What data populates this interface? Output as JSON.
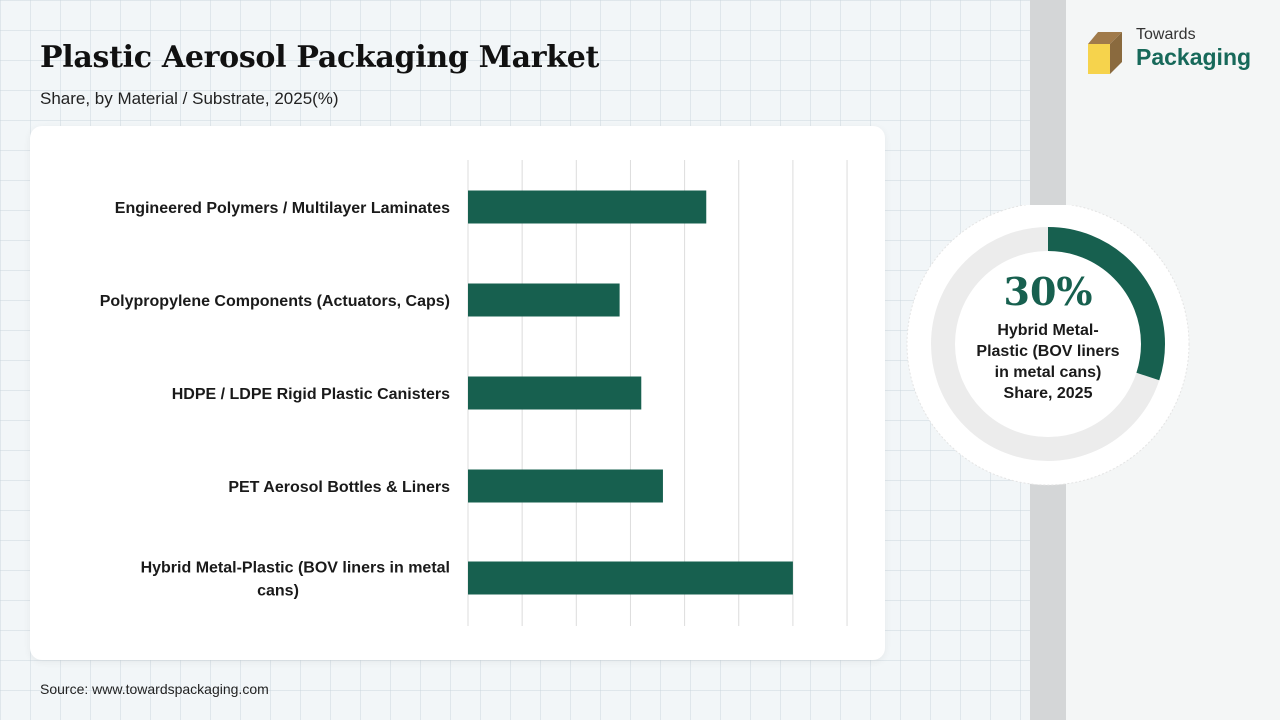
{
  "header": {
    "title": "Plastic Aerosol Packaging Market",
    "subtitle": "Share, by Material / Substrate, 2025(%)"
  },
  "brand": {
    "line1": "Towards",
    "line2": "Packaging"
  },
  "source": "Source: www.towardspackaging.com",
  "colors": {
    "bar": "#17604f",
    "donut_track": "#ececec",
    "brand_green": "#17695a",
    "logo_yellow": "#f6d34c",
    "logo_brown": "#a07a4a"
  },
  "chart_data": [
    {
      "type": "bar",
      "orientation": "horizontal",
      "categories": [
        "Engineered Polymers / Multilayer Laminates",
        "Polypropylene Components (Actuators, Caps)",
        "HDPE / LDPE Rigid Plastic Canisters",
        "PET Aerosol Bottles & Liners",
        "Hybrid Metal-Plastic (BOV liners in metal cans)"
      ],
      "category_lines": [
        [
          "Engineered Polymers / Multilayer Laminates"
        ],
        [
          "Polypropylene Components (Actuators, Caps)"
        ],
        [
          "HDPE / LDPE Rigid Plastic Canisters"
        ],
        [
          "PET Aerosol Bottles & Liners"
        ],
        [
          "Hybrid Metal-Plastic (BOV liners in metal",
          "cans)"
        ]
      ],
      "values": [
        22,
        14,
        16,
        18,
        30
      ],
      "xlim": [
        0,
        35
      ],
      "grid": true
    },
    {
      "type": "pie",
      "style": "donut",
      "value": 30,
      "value_label": "30%",
      "label_lines": [
        "Hybrid Metal-",
        "Plastic (BOV liners",
        "in metal cans)",
        "Share, 2025"
      ]
    }
  ]
}
